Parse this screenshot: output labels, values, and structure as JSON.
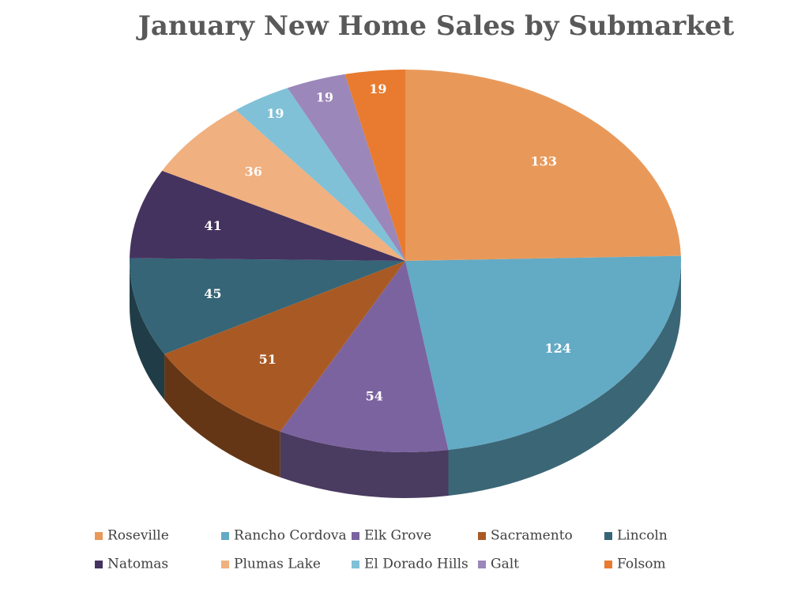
{
  "chart_data": {
    "type": "pie",
    "title": "January New Home Sales by Submarket",
    "categories": [
      "Roseville",
      "Rancho Cordova",
      "Elk Grove",
      "Sacramento",
      "Lincoln",
      "Natomas",
      "Plumas Lake",
      "El Dorado Hills",
      "Galt",
      "Folsom"
    ],
    "values": [
      133,
      124,
      54,
      51,
      45,
      41,
      36,
      19,
      19,
      19
    ],
    "colors": [
      "#e8995a",
      "#63aac5",
      "#7b63a0",
      "#a95a24",
      "#356577",
      "#45335f",
      "#f0b07f",
      "#80c1d7",
      "#9b87b9",
      "#e87b2f"
    ]
  }
}
